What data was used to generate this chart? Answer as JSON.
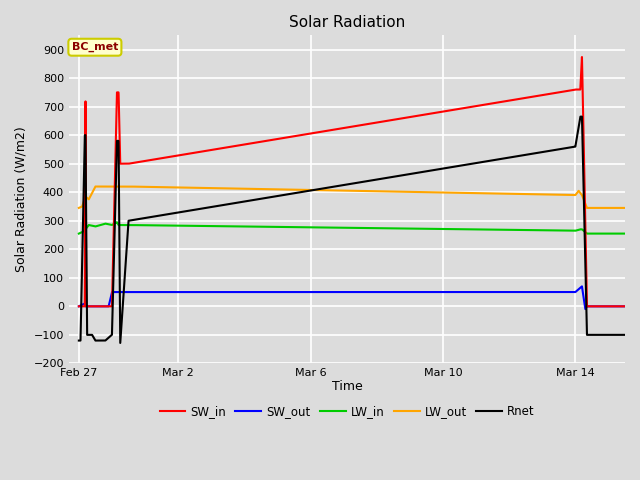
{
  "title": "Solar Radiation",
  "xlabel": "Time",
  "ylabel": "Solar Radiation (W/m2)",
  "ylim": [
    -200,
    950
  ],
  "yticks": [
    -200,
    -100,
    0,
    100,
    200,
    300,
    400,
    500,
    600,
    700,
    800,
    900
  ],
  "bg_color": "#dcdcdc",
  "plot_bg_color": "#dcdcdc",
  "legend_label": "BC_met",
  "colors": {
    "SW_in": "#ff0000",
    "SW_out": "#0000ff",
    "LW_in": "#00cc00",
    "LW_out": "#ffa500",
    "Rnet": "#000000"
  },
  "x_tick_labels": [
    "Feb 27",
    "Mar 2",
    "Mar 6",
    "Mar 10",
    "Mar 14"
  ],
  "x_tick_positions": [
    0,
    3,
    7,
    11,
    15
  ],
  "xlim": [
    -0.3,
    16.5
  ],
  "figsize": [
    6.4,
    4.8
  ]
}
